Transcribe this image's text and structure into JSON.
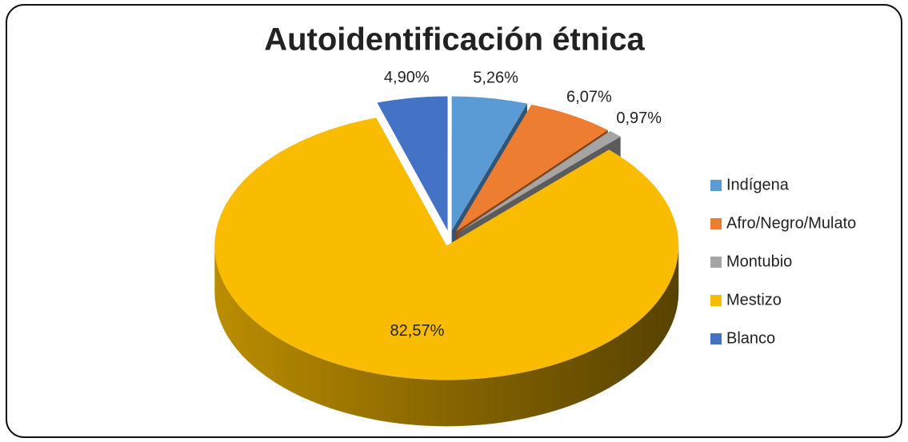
{
  "chart_data": {
    "type": "pie",
    "title": "Autoidentificación étnica",
    "categories": [
      "Indígena",
      "Afro/Negro/Mulato",
      "Montubio",
      "Mestizo",
      "Blanco"
    ],
    "values": [
      5.26,
      6.07,
      0.97,
      82.57,
      4.9
    ],
    "value_labels": [
      "5,26%",
      "6,07%",
      "0,97%",
      "82,57%",
      "4,90%"
    ],
    "colors": [
      "#5b9bd5",
      "#ed7d31",
      "#a5a5a5",
      "#f9bc00",
      "#4472c4"
    ],
    "legend": "right"
  }
}
